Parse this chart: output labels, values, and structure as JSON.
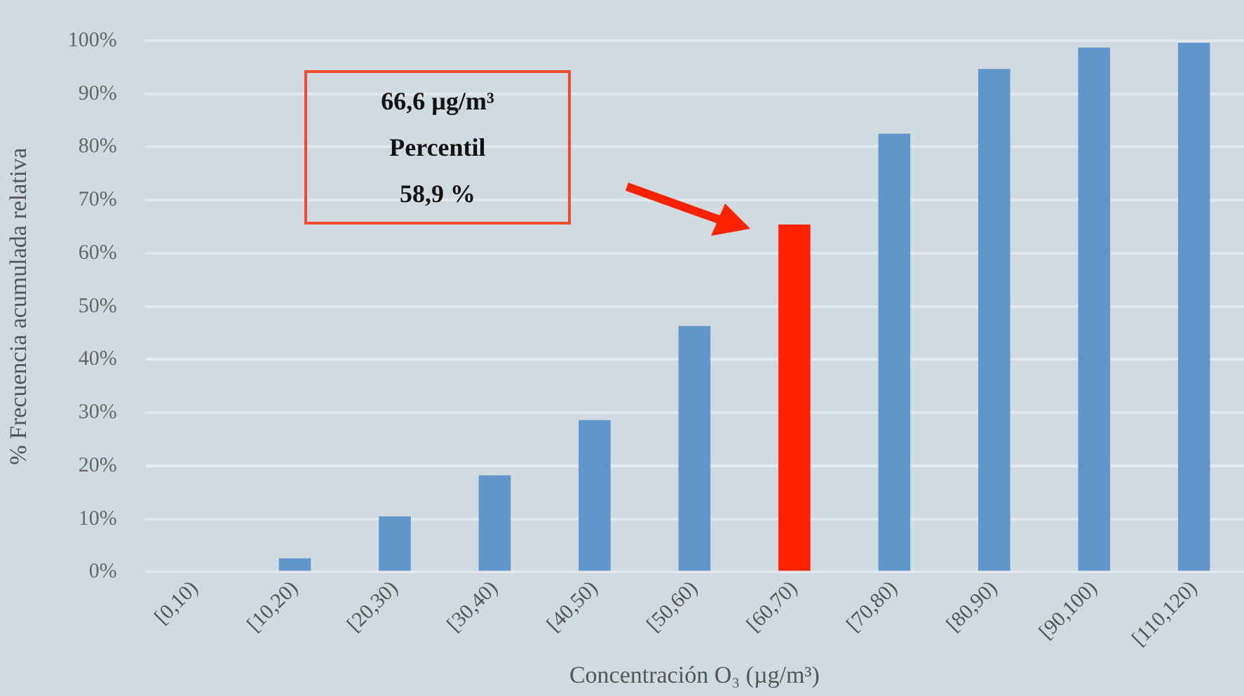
{
  "chart_data": {
    "type": "bar",
    "xlabel": "Concentración O₃ (µg/m³)",
    "ylabel": "% Frecuencia acumulada relativa",
    "categories": [
      "[0,10)",
      "[10,20)",
      "[20,30)",
      "[30,40)",
      "[40,50)",
      "[50,60)",
      "[60,70)",
      "[70,80)",
      "[80,90)",
      "[90,100)",
      "[110,120)"
    ],
    "values": [
      0,
      2.6,
      10.5,
      18.2,
      28.6,
      46.3,
      65.4,
      82.5,
      94.7,
      98.7,
      99.6
    ],
    "colors": [
      "#6096c9",
      "#6096c9",
      "#6096c9",
      "#6096c9",
      "#6096c9",
      "#6096c9",
      "#ff2200",
      "#6096c9",
      "#6096c9",
      "#6096c9",
      "#6096c9"
    ],
    "ylim": [
      0,
      100
    ],
    "yticks": [
      {
        "value": 0,
        "label": "0%"
      },
      {
        "value": 10,
        "label": "10%"
      },
      {
        "value": 20,
        "label": "20%"
      },
      {
        "value": 30,
        "label": "30%"
      },
      {
        "value": 40,
        "label": "40%"
      },
      {
        "value": 50,
        "label": "50%"
      },
      {
        "value": 60,
        "label": "60%"
      },
      {
        "value": 70,
        "label": "70%"
      },
      {
        "value": 80,
        "label": "80%"
      },
      {
        "value": 90,
        "label": "90%"
      },
      {
        "value": 100,
        "label": "100%"
      }
    ],
    "grid": "y",
    "annotations": [
      "66,6 µg/m³\nPercentil\n58,9 %"
    ]
  }
}
